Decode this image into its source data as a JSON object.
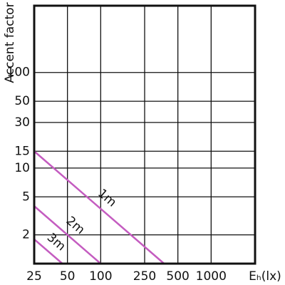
{
  "chart_data": {
    "type": "line",
    "y_label": "Accent factor",
    "x_label": "Eₕ(lx)",
    "log_x": true,
    "log_y": true,
    "grid": true,
    "xlim": [
      25,
      2500
    ],
    "ylim": [
      1,
      500
    ],
    "xticks": [
      25,
      50,
      100,
      250,
      500,
      1000
    ],
    "yticks": [
      2,
      5,
      10,
      15,
      30,
      50,
      100
    ],
    "series": [
      {
        "name": "1m",
        "color": "#c45cc0",
        "x": [
          25,
          375
        ],
        "values": [
          15,
          1
        ]
      },
      {
        "name": "2m",
        "color": "#c45cc0",
        "x": [
          25,
          100
        ],
        "values": [
          4,
          1
        ]
      },
      {
        "name": "3m",
        "color": "#c45cc0",
        "x": [
          25,
          45
        ],
        "values": [
          1.8,
          1
        ]
      }
    ]
  }
}
